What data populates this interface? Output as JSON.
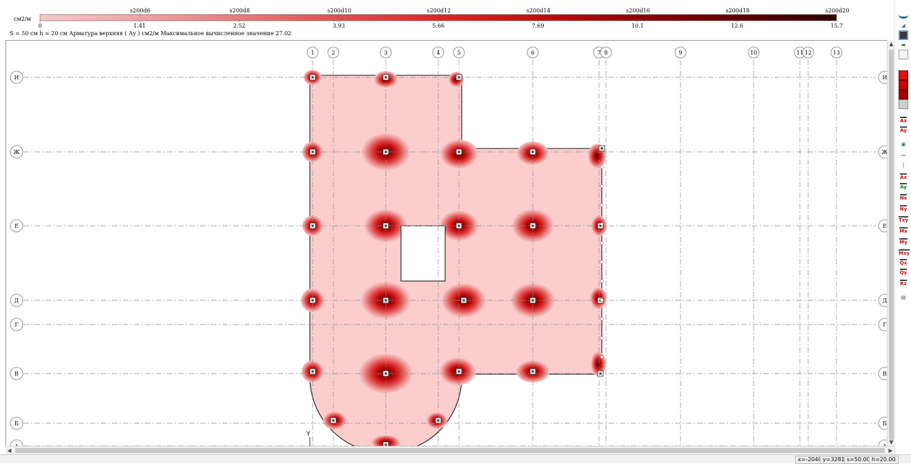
{
  "legend": {
    "units": "см2/м",
    "top_labels": [
      "s200d6",
      "s200d8",
      "s200d10",
      "s200d12",
      "s200d14",
      "s200d16",
      "s200d18",
      "s200d20"
    ],
    "bottom_labels": [
      "0",
      "1.41",
      "2.52",
      "3.93",
      "5.66",
      "7.69",
      "10.1",
      "12.6",
      "15.7"
    ],
    "colors": [
      "#f8c8c8",
      "#f0a4a4",
      "#e87c7c",
      "#e05050",
      "#d82828",
      "#c01010",
      "#900000",
      "#600000",
      "#300000"
    ]
  },
  "status_text": "S = 50 см  h = 20 см  Арматура верхняя ( Ау ) см2/м   Максимальное вычисленное значение 27.02",
  "axes": {
    "columns": [
      "1",
      "2",
      "3",
      "4",
      "5",
      "6",
      "7",
      "8",
      "9",
      "10",
      "11",
      "12",
      "13"
    ],
    "rows": [
      "И",
      "Ж",
      "Е",
      "Д",
      "Г",
      "В",
      "Б",
      "А"
    ]
  },
  "plan": {
    "y_axis_label": "Y"
  },
  "toolbar": {
    "icons": [
      "pin-icon",
      "arrow-icon",
      "grid-icon",
      "pencil-icon",
      "copy-icon",
      "fill-red-icon",
      "fill-red2-icon",
      "fill-red3-icon",
      "fill-gray-icon",
      "ax-icon",
      "ay-icon",
      "export-icon",
      "line-h-icon",
      "line-v-icon",
      "ax2-icon",
      "ay2-icon",
      "nx-icon",
      "ny-icon",
      "txy-icon",
      "mx-icon",
      "my-icon",
      "mxy-icon",
      "qx-icon",
      "qy-icon",
      "rz-icon",
      "print-icon"
    ],
    "labels": [
      "",
      "",
      "",
      "",
      "",
      "",
      "",
      "",
      "",
      "Ax",
      "Ay",
      "",
      "",
      "",
      "Ax",
      "Ay",
      "Nx",
      "Ny",
      "Txy",
      "Mx",
      "My",
      "Mxy",
      "Qx",
      "Qy",
      "Rz",
      ""
    ]
  },
  "statusbar": {
    "x": "x=-2040",
    "y": "y=3281",
    "s": "s=50.00",
    "h": "h=20.00"
  }
}
